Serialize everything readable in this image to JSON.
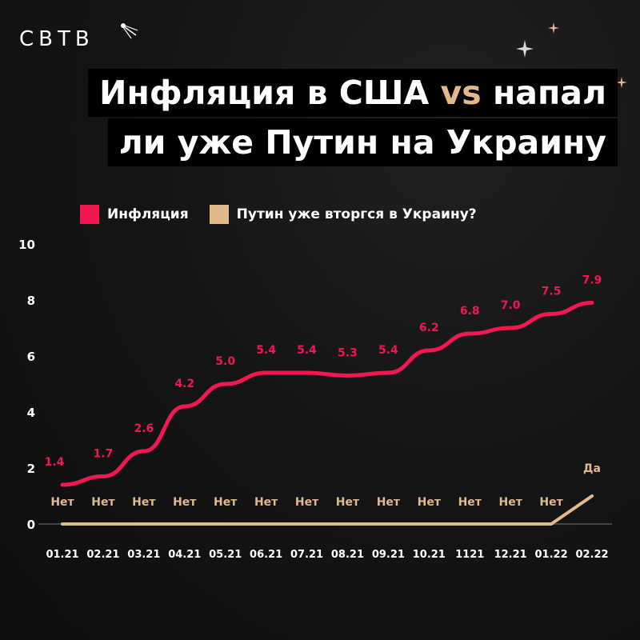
{
  "brand": {
    "logo_text": "СВТВ"
  },
  "header": {
    "title_part1": "Инфляция в США",
    "title_vs": "vs",
    "title_part2": "напал",
    "title_line2": "ли уже Путин на Украину"
  },
  "colors": {
    "inflation": "#f0184f",
    "putin": "#e2b98a",
    "accent": "#e2b98a",
    "background": "#151515"
  },
  "chart_data": {
    "type": "line",
    "title": "Инфляция в США vs напал ли уже Путин на Украину",
    "xlabel": "",
    "ylabel": "",
    "ylim": [
      0,
      10
    ],
    "yticks": [
      "0",
      "2",
      "4",
      "6",
      "8",
      "10"
    ],
    "ytick_values": [
      0,
      2,
      4,
      6,
      8,
      10
    ],
    "categories": [
      "01.21",
      "02.21",
      "03.21",
      "04.21",
      "05.21",
      "06.21",
      "07.21",
      "08.21",
      "09.21",
      "10.21",
      "1121",
      "12.21",
      "01.22",
      "02.22"
    ],
    "legend_position": "top-left",
    "grid": false,
    "series": [
      {
        "name": "Инфляция",
        "color": "#f0184f",
        "values": [
          1.4,
          1.7,
          2.6,
          4.2,
          5.0,
          5.4,
          5.4,
          5.3,
          5.4,
          6.2,
          6.8,
          7.0,
          7.5,
          7.9
        ],
        "labels": [
          "1.4",
          "1.7",
          "2.6",
          "4.2",
          "5.0",
          "5.4",
          "5.4",
          "5.3",
          "5.4",
          "6.2",
          "6.8",
          "7.0",
          "7.5",
          "7.9"
        ]
      },
      {
        "name": "Путин уже вторгся в Украину?",
        "color": "#e2b98a",
        "values": [
          0,
          0,
          0,
          0,
          0,
          0,
          0,
          0,
          0,
          0,
          0,
          0,
          0,
          1
        ],
        "labels": [
          "Нет",
          "Нет",
          "Нет",
          "Нет",
          "Нет",
          "Нет",
          "Нет",
          "Нет",
          "Нет",
          "Нет",
          "Нет",
          "Нет",
          "Нет",
          "Да"
        ]
      }
    ]
  }
}
